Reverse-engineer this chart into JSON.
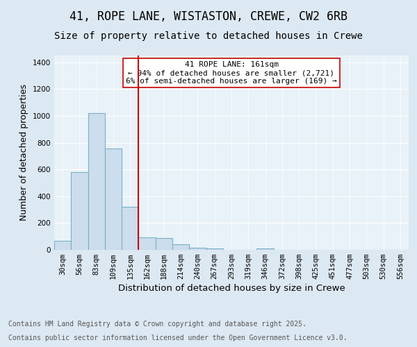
{
  "title_line1": "41, ROPE LANE, WISTASTON, CREWE, CW2 6RB",
  "title_line2": "Size of property relative to detached houses in Crewe",
  "xlabel": "Distribution of detached houses by size in Crewe",
  "ylabel": "Number of detached properties",
  "categories": [
    "30sqm",
    "56sqm",
    "83sqm",
    "109sqm",
    "135sqm",
    "162sqm",
    "188sqm",
    "214sqm",
    "240sqm",
    "267sqm",
    "293sqm",
    "319sqm",
    "346sqm",
    "372sqm",
    "398sqm",
    "425sqm",
    "451sqm",
    "477sqm",
    "503sqm",
    "530sqm",
    "556sqm"
  ],
  "values": [
    65,
    580,
    1020,
    755,
    320,
    95,
    90,
    40,
    18,
    8,
    2,
    0,
    10,
    0,
    0,
    0,
    0,
    0,
    0,
    0,
    0
  ],
  "bar_color": "#ccdded",
  "bar_edge_color": "#7aafc8",
  "vline_x_index": 5,
  "vline_color": "#cc0000",
  "annotation_title": "41 ROPE LANE: 161sqm",
  "annotation_line1": "← 94% of detached houses are smaller (2,721)",
  "annotation_line2": "6% of semi-detached houses are larger (169) →",
  "annotation_box_facecolor": "#ffffff",
  "annotation_box_edgecolor": "#cc0000",
  "ylim": [
    0,
    1450
  ],
  "yticks": [
    0,
    200,
    400,
    600,
    800,
    1000,
    1200,
    1400
  ],
  "bg_color": "#dce8f2",
  "plot_bg_color": "#e8f2f8",
  "grid_color": "#ffffff",
  "footer_line1": "Contains HM Land Registry data © Crown copyright and database right 2025.",
  "footer_line2": "Contains public sector information licensed under the Open Government Licence v3.0.",
  "title_fontsize": 12,
  "subtitle_fontsize": 10,
  "axis_label_fontsize": 9,
  "tick_fontsize": 7.5,
  "annotation_fontsize": 8,
  "footer_fontsize": 7
}
